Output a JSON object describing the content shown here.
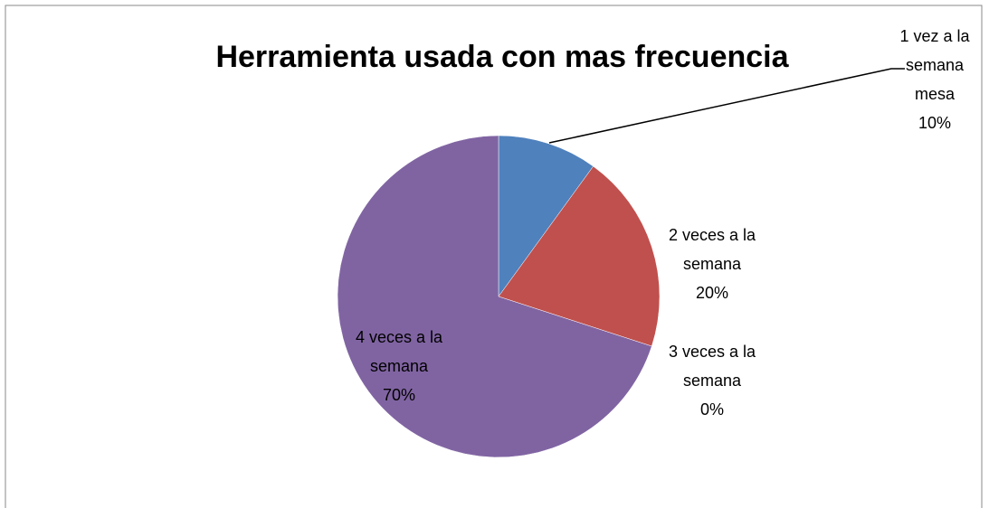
{
  "chart_data": {
    "type": "pie",
    "title": "Herramienta usada con mas frecuencia",
    "categories": [
      "1 vez a la semana mesa",
      "2 veces a la semana",
      "3 veces a la semana",
      "4 veces a la semana"
    ],
    "values": [
      10,
      20,
      0,
      70
    ],
    "value_labels": [
      "10%",
      "20%",
      "0%",
      "70%"
    ],
    "colors": [
      "#4f81bd",
      "#c0504d",
      "#9bbb59",
      "#8064a2"
    ]
  }
}
